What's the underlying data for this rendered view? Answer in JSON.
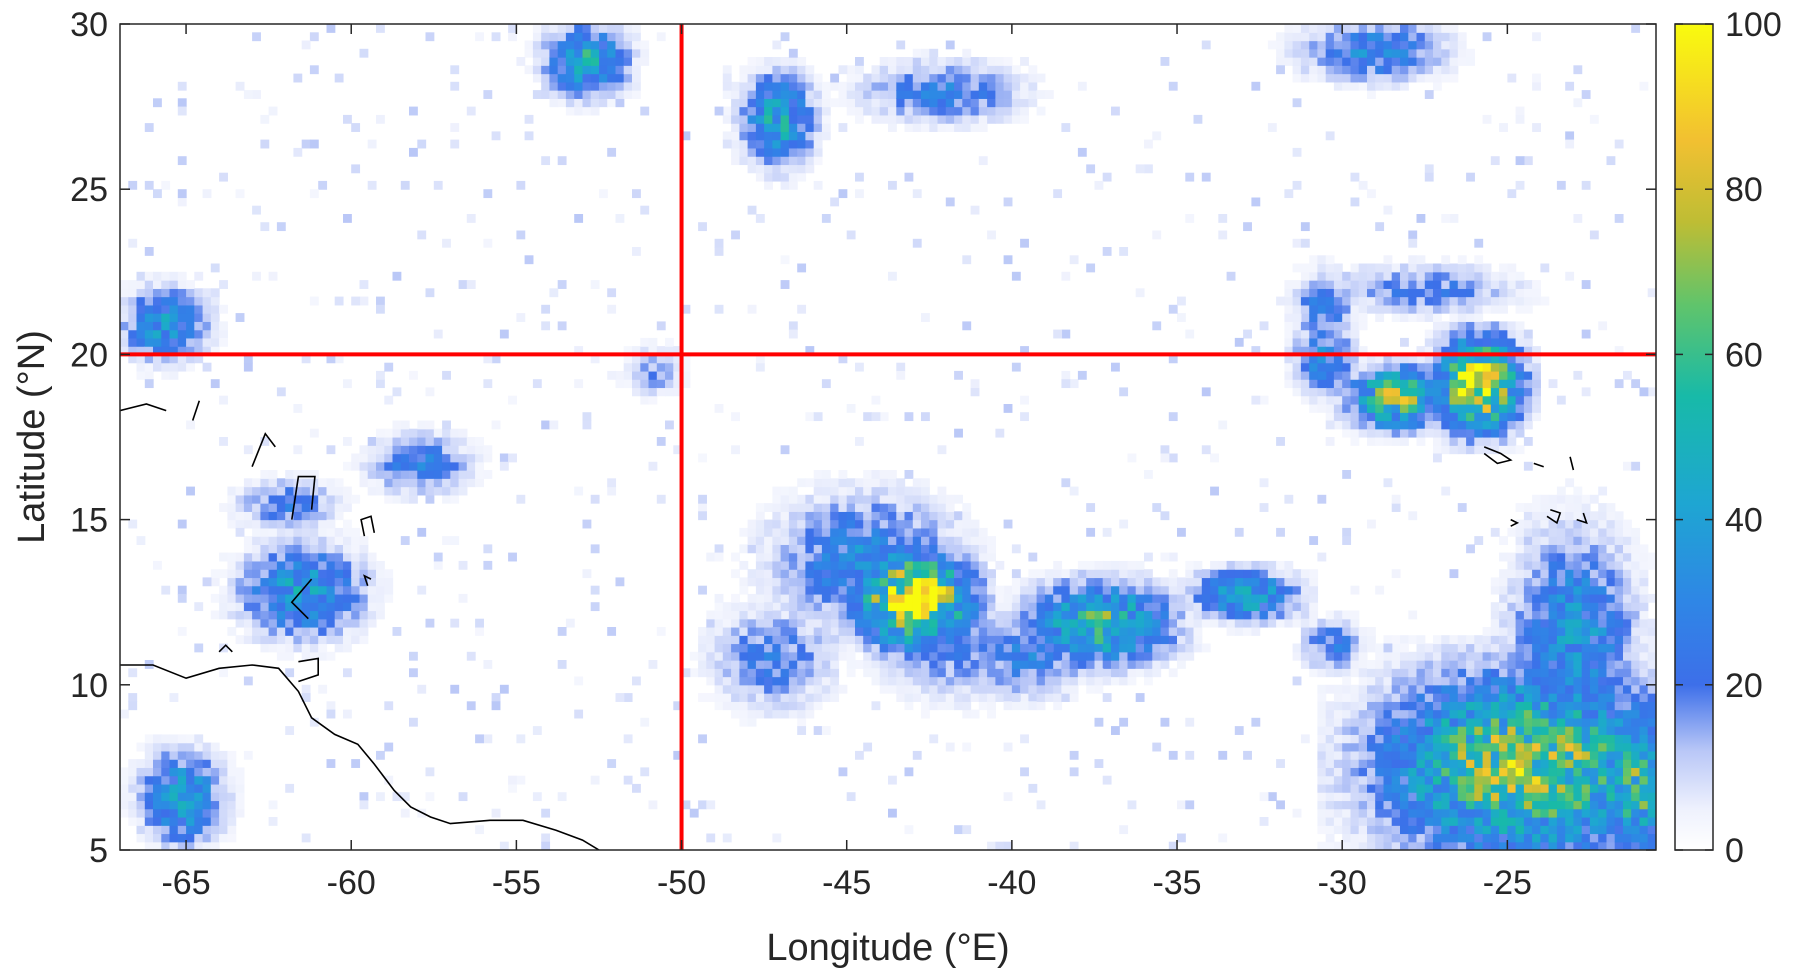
{
  "chart_data": {
    "type": "heatmap",
    "title": "",
    "xlabel": "Longitude (°E)",
    "ylabel": "Latitude (°N)",
    "xlim": [
      -67,
      -20.5
    ],
    "ylim": [
      5,
      30
    ],
    "xticks": [
      -65,
      -60,
      -55,
      -50,
      -45,
      -40,
      -35,
      -30,
      -25
    ],
    "xtick_labels": [
      "-65",
      "-60",
      "-55",
      "-50",
      "-45",
      "-40",
      "-35",
      "-30",
      "-25"
    ],
    "yticks": [
      5,
      10,
      15,
      20,
      25,
      30
    ],
    "ytick_labels": [
      "5",
      "10",
      "15",
      "20",
      "25",
      "30"
    ],
    "colorbar": {
      "range": [
        0,
        100
      ],
      "ticks": [
        0,
        20,
        40,
        60,
        80,
        100
      ],
      "tick_labels": [
        "0",
        "20",
        "40",
        "60",
        "80",
        "100"
      ],
      "colormap": [
        "#ffffff",
        "#d9e1fb",
        "#6e8cf2",
        "#2f6ae8",
        "#1f9fd6",
        "#18b8b0",
        "#5cc46a",
        "#bcbc34",
        "#f3c232",
        "#f8fb10"
      ]
    },
    "grid": false,
    "reference_lines": [
      {
        "orientation": "vertical",
        "value": -50,
        "color": "#ff0000"
      },
      {
        "orientation": "horizontal",
        "value": 20,
        "color": "#ff0000"
      }
    ],
    "clusters": [
      {
        "lon": -43.0,
        "lat": 12.7,
        "peak": 95,
        "spread_lon": 1.1,
        "spread_lat": 0.9
      },
      {
        "lon": -44.5,
        "lat": 13.8,
        "peak": 30,
        "spread_lon": 1.8,
        "spread_lat": 1.3
      },
      {
        "lon": -47.2,
        "lat": 10.8,
        "peak": 22,
        "spread_lon": 1.2,
        "spread_lat": 1.0
      },
      {
        "lon": -41.5,
        "lat": 11.0,
        "peak": 18,
        "spread_lon": 1.6,
        "spread_lat": 1.0
      },
      {
        "lon": -39.5,
        "lat": 10.8,
        "peak": 25,
        "spread_lon": 1.2,
        "spread_lat": 0.8
      },
      {
        "lon": -37.3,
        "lat": 11.8,
        "peak": 55,
        "spread_lon": 1.4,
        "spread_lat": 0.8
      },
      {
        "lon": -33.0,
        "lat": 12.7,
        "peak": 45,
        "spread_lon": 1.0,
        "spread_lat": 0.5
      },
      {
        "lon": -30.4,
        "lat": 11.3,
        "peak": 25,
        "spread_lon": 0.6,
        "spread_lat": 0.5
      },
      {
        "lon": -25.8,
        "lat": 19.0,
        "peak": 95,
        "spread_lon": 0.8,
        "spread_lat": 0.9
      },
      {
        "lon": -28.5,
        "lat": 18.8,
        "peak": 65,
        "spread_lon": 0.9,
        "spread_lat": 0.6
      },
      {
        "lon": -30.5,
        "lat": 19.8,
        "peak": 30,
        "spread_lon": 0.6,
        "spread_lat": 0.7
      },
      {
        "lon": -30.5,
        "lat": 21.5,
        "peak": 25,
        "spread_lon": 0.6,
        "spread_lat": 0.7
      },
      {
        "lon": -27.5,
        "lat": 22.0,
        "peak": 20,
        "spread_lon": 1.8,
        "spread_lat": 0.5
      },
      {
        "lon": -24.5,
        "lat": 7.5,
        "peak": 70,
        "spread_lon": 2.8,
        "spread_lat": 1.8
      },
      {
        "lon": -23.0,
        "lat": 11.5,
        "peak": 35,
        "spread_lon": 1.2,
        "spread_lat": 2.0
      },
      {
        "lon": -21.0,
        "lat": 7.0,
        "peak": 60,
        "spread_lon": 0.7,
        "spread_lat": 1.3
      },
      {
        "lon": -61.5,
        "lat": 12.8,
        "peak": 40,
        "spread_lon": 1.2,
        "spread_lat": 0.9
      },
      {
        "lon": -65.5,
        "lat": 21.0,
        "peak": 40,
        "spread_lon": 0.8,
        "spread_lat": 0.7
      },
      {
        "lon": -62.0,
        "lat": 15.5,
        "peak": 22,
        "spread_lon": 1.0,
        "spread_lat": 0.5
      },
      {
        "lon": -58.0,
        "lat": 16.7,
        "peak": 25,
        "spread_lon": 1.0,
        "spread_lat": 0.6
      },
      {
        "lon": -65.0,
        "lat": 6.5,
        "peak": 40,
        "spread_lon": 0.8,
        "spread_lat": 0.9
      },
      {
        "lon": -52.8,
        "lat": 29.0,
        "peak": 45,
        "spread_lon": 0.8,
        "spread_lat": 0.7
      },
      {
        "lon": -47.0,
        "lat": 27.0,
        "peak": 45,
        "spread_lon": 0.7,
        "spread_lat": 0.9
      },
      {
        "lon": -42.0,
        "lat": 28.0,
        "peak": 25,
        "spread_lon": 1.6,
        "spread_lat": 0.6
      },
      {
        "lon": -29.0,
        "lat": 29.3,
        "peak": 30,
        "spread_lon": 1.4,
        "spread_lat": 0.6
      },
      {
        "lon": -50.8,
        "lat": 19.5,
        "peak": 15,
        "spread_lon": 0.6,
        "spread_lat": 0.5
      }
    ],
    "coastlines": [
      [
        [
          -67,
          10.6
        ],
        [
          -66,
          10.6
        ],
        [
          -65,
          10.2
        ],
        [
          -64,
          10.5
        ],
        [
          -63,
          10.6
        ],
        [
          -62.2,
          10.5
        ],
        [
          -61.6,
          9.8
        ],
        [
          -61.2,
          9.0
        ],
        [
          -60.5,
          8.5
        ],
        [
          -59.8,
          8.2
        ],
        [
          -59.3,
          7.6
        ],
        [
          -58.7,
          6.8
        ],
        [
          -58.2,
          6.3
        ],
        [
          -57.6,
          6.0
        ],
        [
          -57.0,
          5.8
        ],
        [
          -55.8,
          5.9
        ],
        [
          -54.8,
          5.9
        ],
        [
          -53.8,
          5.6
        ],
        [
          -53.0,
          5.3
        ],
        [
          -52.5,
          5.0
        ]
      ],
      [
        [
          -67,
          18.3
        ],
        [
          -66.2,
          18.5
        ],
        [
          -65.6,
          18.3
        ]
      ],
      [
        [
          -61.6,
          10.7
        ],
        [
          -61.0,
          10.8
        ],
        [
          -61.0,
          10.3
        ],
        [
          -61.6,
          10.1
        ]
      ],
      [
        [
          -59.6,
          14.5
        ],
        [
          -59.7,
          15.0
        ],
        [
          -59.4,
          15.1
        ],
        [
          -59.3,
          14.6
        ]
      ],
      [
        [
          -59.5,
          13.0
        ],
        [
          -59.6,
          13.3
        ],
        [
          -59.4,
          13.2
        ]
      ],
      [
        [
          -61.8,
          15.0
        ],
        [
          -61.6,
          16.3
        ],
        [
          -61.1,
          16.3
        ],
        [
          -61.2,
          15.3
        ]
      ],
      [
        [
          -61.3,
          12.0
        ],
        [
          -61.8,
          12.5
        ],
        [
          -61.2,
          13.2
        ]
      ],
      [
        [
          -63.0,
          16.6
        ],
        [
          -62.6,
          17.6
        ],
        [
          -62.3,
          17.2
        ]
      ],
      [
        [
          -64.8,
          18.0
        ],
        [
          -64.6,
          18.6
        ]
      ],
      [
        [
          -64.0,
          11.0
        ],
        [
          -63.8,
          11.2
        ],
        [
          -63.6,
          11.0
        ]
      ],
      [
        [
          -25.7,
          17.2
        ],
        [
          -25.2,
          17.0
        ],
        [
          -24.9,
          16.8
        ],
        [
          -25.3,
          16.7
        ],
        [
          -25.7,
          17.0
        ]
      ],
      [
        [
          -24.2,
          16.7
        ],
        [
          -23.9,
          16.6
        ]
      ],
      [
        [
          -24.9,
          15.0
        ],
        [
          -24.7,
          14.9
        ],
        [
          -24.9,
          14.8
        ]
      ],
      [
        [
          -23.7,
          15.3
        ],
        [
          -23.4,
          15.2
        ],
        [
          -23.5,
          14.9
        ],
        [
          -23.8,
          15.1
        ]
      ],
      [
        [
          -23.1,
          16.9
        ],
        [
          -23.0,
          16.5
        ]
      ],
      [
        [
          -22.9,
          15.0
        ],
        [
          -22.6,
          14.9
        ],
        [
          -22.7,
          15.2
        ]
      ]
    ],
    "scatter_seed": 7,
    "scatter_count": 900
  }
}
